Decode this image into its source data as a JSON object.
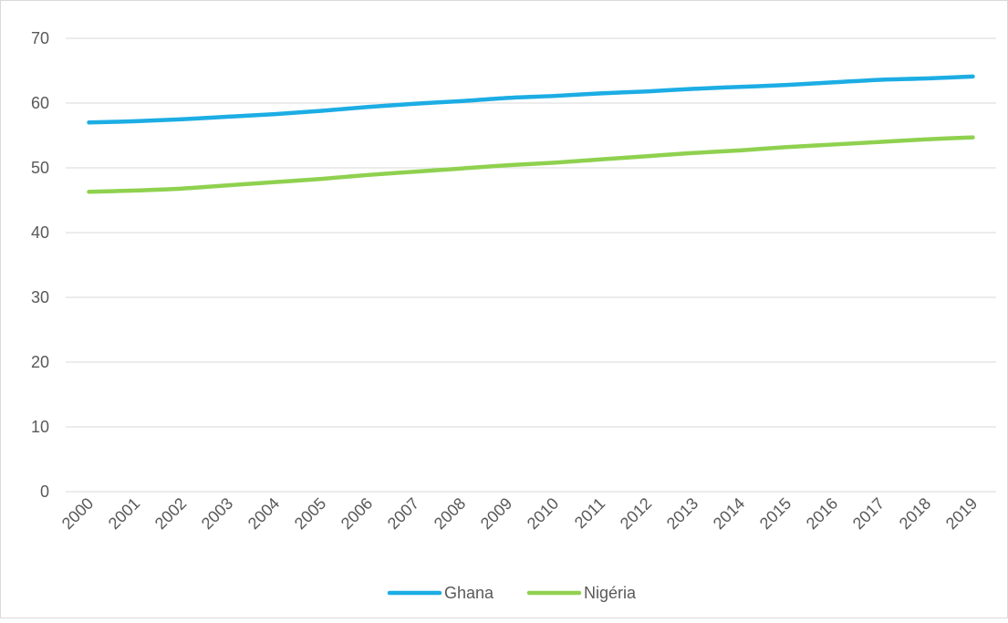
{
  "chart_data": {
    "type": "line",
    "title": "",
    "xlabel": "",
    "ylabel": "",
    "categories": [
      "2000",
      "2001",
      "2002",
      "2003",
      "2004",
      "2005",
      "2006",
      "2007",
      "2008",
      "2009",
      "2010",
      "2011",
      "2012",
      "2013",
      "2014",
      "2015",
      "2016",
      "2017",
      "2018",
      "2019"
    ],
    "ylim": [
      0,
      70
    ],
    "yticks": [
      "0",
      "10",
      "20",
      "30",
      "40",
      "50",
      "60",
      "70"
    ],
    "grid": true,
    "legend_position": "bottom",
    "series": [
      {
        "name": "Ghana",
        "color": "#1CADE4",
        "values": [
          57.0,
          57.2,
          57.5,
          57.9,
          58.3,
          58.8,
          59.4,
          59.9,
          60.3,
          60.8,
          61.1,
          61.5,
          61.8,
          62.2,
          62.5,
          62.8,
          63.2,
          63.6,
          63.8,
          64.1
        ]
      },
      {
        "name": "Nigéria",
        "color": "#8FD14F",
        "values": [
          46.3,
          46.5,
          46.8,
          47.3,
          47.8,
          48.3,
          48.9,
          49.4,
          49.9,
          50.4,
          50.8,
          51.3,
          51.8,
          52.3,
          52.7,
          53.2,
          53.6,
          54.0,
          54.4,
          54.7
        ]
      }
    ]
  }
}
